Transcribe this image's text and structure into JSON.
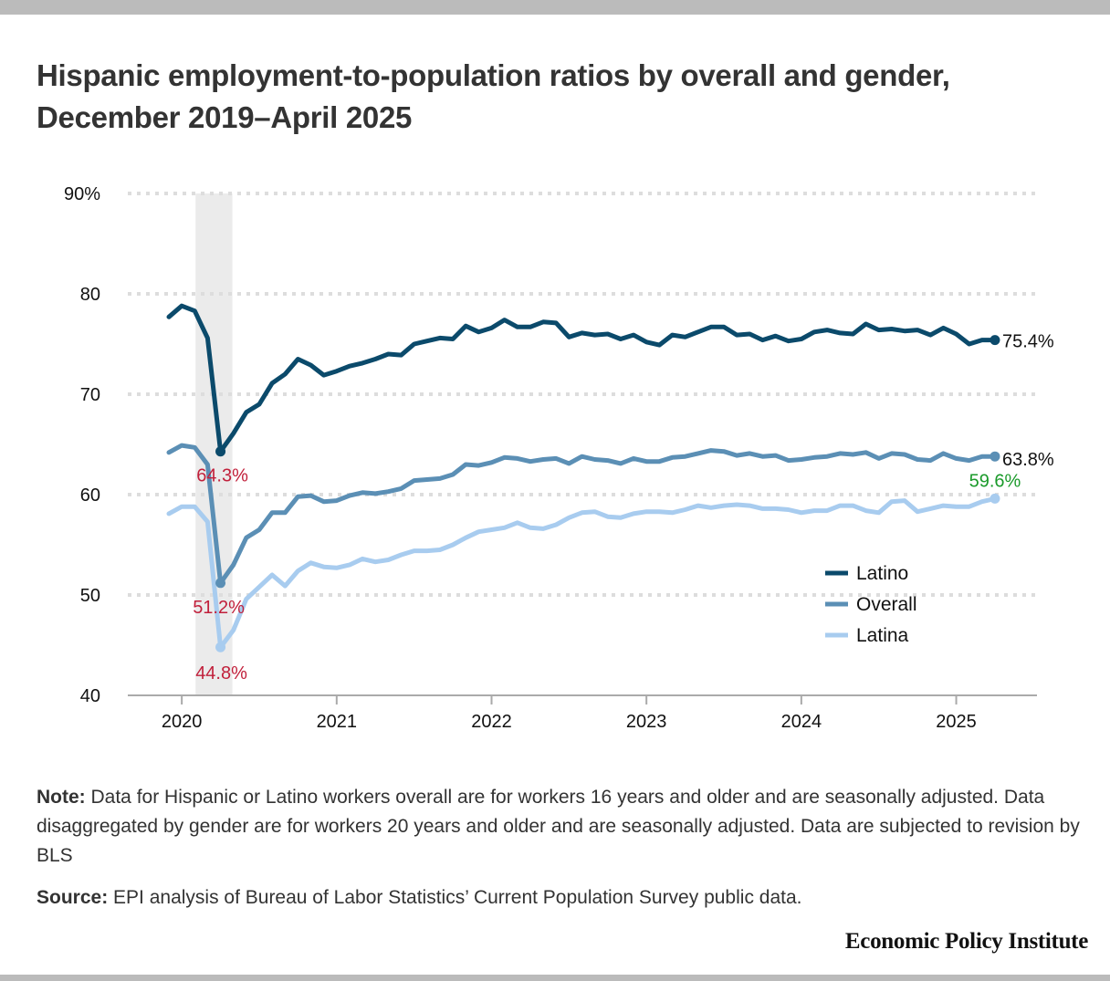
{
  "header": {
    "title": "Hispanic employment-to-population ratios by overall and gender, December 2019–April 2025"
  },
  "chart_data": {
    "type": "line",
    "title": "Hispanic employment-to-population ratios by overall and gender, December 2019–April 2025",
    "xlabel": "",
    "ylabel": "",
    "ylim": [
      40,
      90
    ],
    "yticks": [
      40,
      50,
      60,
      70,
      80,
      90
    ],
    "ytick_labels": [
      "40",
      "50",
      "60",
      "70",
      "80",
      "90%"
    ],
    "xticks": [
      "2020",
      "2021",
      "2022",
      "2023",
      "2024",
      "2025"
    ],
    "x_start": "2019-12",
    "x_end": "2025-04",
    "grid": "horizontal dotted",
    "recession_shading": {
      "start": "2020-02",
      "end": "2020-04"
    },
    "legend_position": "lower-right",
    "series": [
      {
        "name": "Latino",
        "color": "#0b4a6b",
        "values": [
          77.7,
          78.8,
          78.3,
          75.6,
          64.3,
          66.1,
          68.2,
          69.0,
          71.1,
          72.0,
          73.5,
          72.9,
          71.9,
          72.3,
          72.8,
          73.1,
          73.5,
          74.0,
          73.9,
          75.0,
          75.3,
          75.6,
          75.5,
          76.8,
          76.2,
          76.6,
          77.4,
          76.7,
          76.7,
          77.2,
          77.1,
          75.7,
          76.1,
          75.9,
          76.0,
          75.5,
          75.9,
          75.2,
          74.9,
          75.9,
          75.7,
          76.2,
          76.7,
          76.7,
          75.9,
          76.0,
          75.4,
          75.8,
          75.3,
          75.5,
          76.2,
          76.4,
          76.1,
          76.0,
          77.0,
          76.4,
          76.5,
          76.3,
          76.4,
          75.9,
          76.6,
          76.0,
          75.0,
          75.4,
          75.4
        ]
      },
      {
        "name": "Overall",
        "color": "#5b8fb5",
        "values": [
          64.2,
          64.9,
          64.7,
          63.0,
          51.2,
          53.0,
          55.7,
          56.5,
          58.2,
          58.2,
          59.8,
          59.9,
          59.3,
          59.4,
          59.9,
          60.2,
          60.1,
          60.3,
          60.6,
          61.4,
          61.5,
          61.6,
          62.0,
          63.0,
          62.9,
          63.2,
          63.7,
          63.6,
          63.3,
          63.5,
          63.6,
          63.1,
          63.8,
          63.5,
          63.4,
          63.1,
          63.6,
          63.3,
          63.3,
          63.7,
          63.8,
          64.1,
          64.4,
          64.3,
          63.9,
          64.1,
          63.8,
          63.9,
          63.4,
          63.5,
          63.7,
          63.8,
          64.1,
          64.0,
          64.2,
          63.6,
          64.1,
          64.0,
          63.5,
          63.4,
          64.1,
          63.6,
          63.4,
          63.8,
          63.8
        ]
      },
      {
        "name": "Latina",
        "color": "#a8ccef",
        "values": [
          58.1,
          58.8,
          58.8,
          57.3,
          44.8,
          46.5,
          49.6,
          50.8,
          52.0,
          50.9,
          52.4,
          53.2,
          52.8,
          52.7,
          53.0,
          53.6,
          53.3,
          53.5,
          54.0,
          54.4,
          54.4,
          54.5,
          55.0,
          55.7,
          56.3,
          56.5,
          56.7,
          57.2,
          56.7,
          56.6,
          57.0,
          57.7,
          58.2,
          58.3,
          57.8,
          57.7,
          58.1,
          58.3,
          58.3,
          58.2,
          58.5,
          58.9,
          58.7,
          58.9,
          59.0,
          58.9,
          58.6,
          58.6,
          58.5,
          58.2,
          58.4,
          58.4,
          58.9,
          58.9,
          58.4,
          58.2,
          59.3,
          59.4,
          58.3,
          58.6,
          58.9,
          58.8,
          58.8,
          59.3,
          59.6
        ]
      }
    ],
    "annotations": [
      {
        "series": "Latino",
        "month": "2020-04",
        "text": "64.3%",
        "color": "#c1203b"
      },
      {
        "series": "Overall",
        "month": "2020-04",
        "text": "51.2%",
        "color": "#c1203b"
      },
      {
        "series": "Latina",
        "month": "2020-04",
        "text": "44.8%",
        "color": "#c1203b"
      },
      {
        "series": "Latino",
        "month": "2025-04",
        "text": "75.4%",
        "color": "#111111"
      },
      {
        "series": "Overall",
        "month": "2025-04",
        "text": "63.8%",
        "color": "#111111"
      },
      {
        "series": "Latina",
        "month": "2025-04",
        "text": "59.6%",
        "color": "#1a9a2a"
      }
    ]
  },
  "footer": {
    "note_label": "Note:",
    "note_text": " Data for Hispanic or Latino workers overall are for workers 16 years and older and are seasonally adjusted. Data disaggregated by gender are for workers 20 years and older and are seasonally adjusted. Data are subjected to revision by BLS",
    "source_label": "Source:",
    "source_text": " EPI analysis of Bureau of Labor Statistics’ Current Population Survey public data.",
    "brand": "Economic Policy Institute"
  }
}
